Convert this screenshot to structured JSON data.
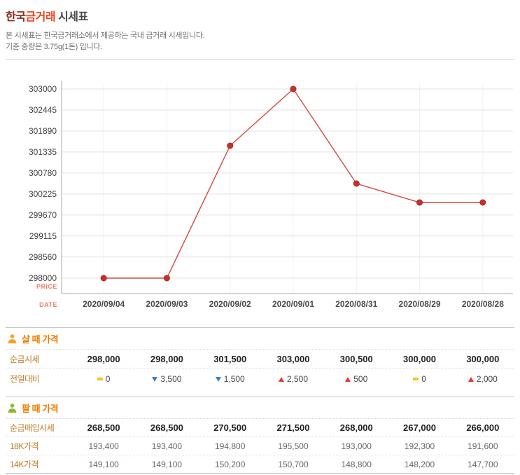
{
  "header": {
    "title_part1": "한국",
    "title_part2": "금거래",
    "title_part3": " 시세표",
    "desc_line1": "본 시세표는 한국금거래소에서 제공하는 국내 금거래 시세입니다.",
    "desc_line2": "기준 중량은 3.75g(1돈) 입니다."
  },
  "chart_data": {
    "type": "line",
    "title": "",
    "xlabel": "DATE",
    "ylabel": "PRICE",
    "x": [
      "2020/09/04",
      "2020/09/03",
      "2020/09/02",
      "2020/09/01",
      "2020/08/31",
      "2020/08/29",
      "2020/08/28"
    ],
    "series": [
      {
        "name": "순금시세(살 때)",
        "values": [
          298000,
          298000,
          301500,
          303000,
          300500,
          300000,
          300000
        ]
      }
    ],
    "y_ticks": [
      303000,
      302445,
      301890,
      301335,
      300780,
      300225,
      299670,
      299115,
      298560,
      298000
    ],
    "ylim": [
      298000,
      303000
    ],
    "grid": true,
    "legend": "none",
    "line_color": "#d04a41",
    "point_color": "#c9302c"
  },
  "buy_section": {
    "title": "살 때 가격",
    "icon": "person-orange-icon",
    "rows": [
      {
        "label": "순금시세",
        "type": "price",
        "values": [
          "298,000",
          "298,000",
          "301,500",
          "303,000",
          "300,500",
          "300,000",
          "300,000"
        ]
      },
      {
        "label": "전일대비",
        "type": "change",
        "values": [
          "0",
          "3,500",
          "1,500",
          "2,500",
          "500",
          "0",
          "2,000"
        ],
        "dirs": [
          "same",
          "down",
          "down",
          "up",
          "up",
          "same",
          "up"
        ]
      }
    ]
  },
  "sell_section": {
    "title": "팔 때 가격",
    "icon": "person-green-icon",
    "rows": [
      {
        "label": "순금매입시세",
        "type": "price",
        "values": [
          "268,500",
          "268,500",
          "270,500",
          "271,500",
          "268,000",
          "267,000",
          "266,000"
        ]
      },
      {
        "label": "18K가격",
        "type": "sub",
        "values": [
          "193,400",
          "193,400",
          "194,800",
          "195,500",
          "193,000",
          "192,300",
          "191,600"
        ]
      },
      {
        "label": "14K가격",
        "type": "sub",
        "values": [
          "149,100",
          "149,100",
          "150,200",
          "150,700",
          "148,800",
          "148,200",
          "147,700"
        ]
      }
    ]
  },
  "colors": {
    "up": "#e23b2e",
    "down": "#4a78c8",
    "same": "#f5c518",
    "line": "#d04a41",
    "section_title": "#f07c00",
    "title_accent": "#e8431f",
    "axis_label": "#ef7b66"
  }
}
